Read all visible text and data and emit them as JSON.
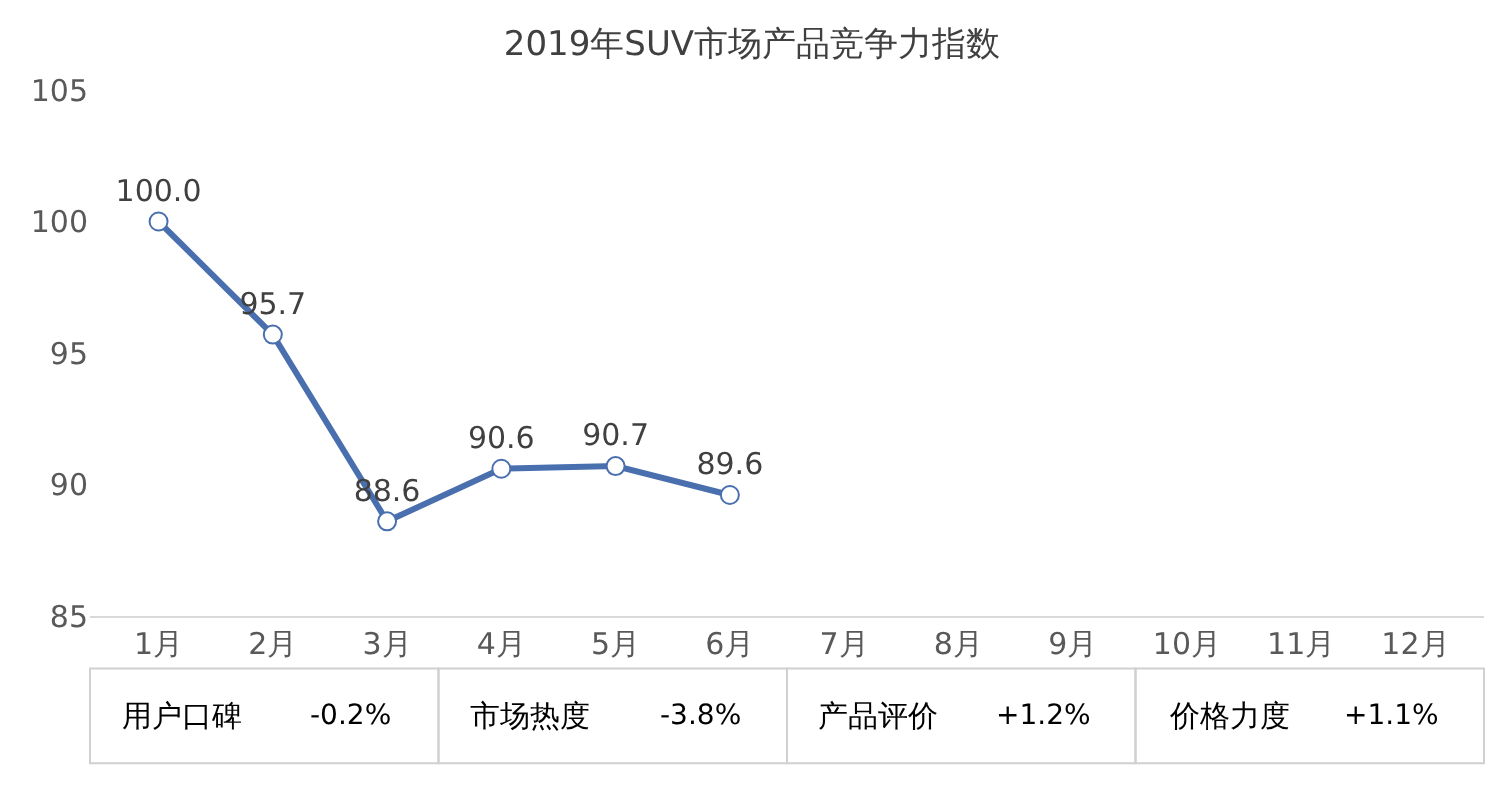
{
  "chart_data": {
    "type": "line",
    "title": "2019年SUV市场产品竞争力指数",
    "categories": [
      "1月",
      "2月",
      "3月",
      "4月",
      "5月",
      "6月",
      "7月",
      "8月",
      "9月",
      "10月",
      "11月",
      "12月"
    ],
    "series": [
      {
        "color": "#4a6fae",
        "values": [
          100.0,
          95.7,
          88.6,
          90.6,
          90.7,
          89.6,
          null,
          null,
          null,
          null,
          null,
          null
        ]
      }
    ],
    "ylim": [
      85,
      105
    ],
    "yticks": [
      85,
      90,
      95,
      100,
      105
    ],
    "marker": "circle",
    "line_style": "solid",
    "value_labels": [
      "100.0",
      "95.7",
      "88.6",
      "90.6",
      "90.7",
      "89.6",
      null,
      null,
      null,
      null,
      null,
      null
    ],
    "annotations": [
      "用户口碑",
      "-0.2%",
      "市场热度",
      "-3.8%",
      "产品评价",
      "+1.2%",
      "价格力度",
      "+1.1%"
    ]
  }
}
